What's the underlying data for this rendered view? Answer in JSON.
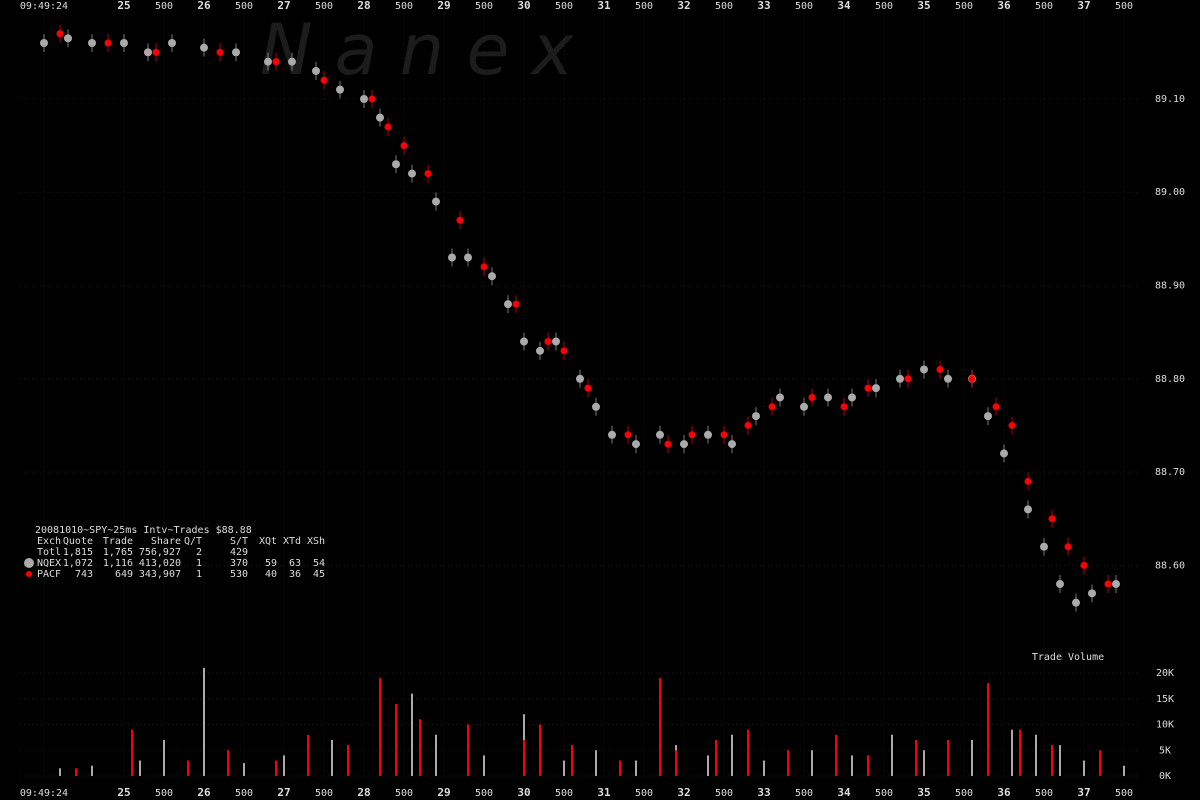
{
  "watermark": "N a n e x",
  "info": {
    "title": "20081010~SPY~25ms Intv~Trades $88.88",
    "columns": [
      "Exch",
      "Quote",
      "Trade",
      "Share",
      "Q/T",
      "S/T",
      "XQt",
      "XTd",
      "XSh"
    ],
    "total_label": "Totl",
    "total": [
      "1,815",
      "1,765",
      "756,927",
      "2",
      "429"
    ],
    "rows": [
      [
        "1,072",
        "1,116",
        "413,020",
        "1",
        "370",
        "59",
        "63",
        "54"
      ],
      [
        "743",
        "649",
        "343,907",
        "1",
        "530",
        "40",
        "36",
        "45"
      ]
    ]
  },
  "chart_data": [
    {
      "type": "scatter",
      "xlim": [
        23.7,
        37.7
      ],
      "xticks": [
        {
          "value": 24,
          "label": "09:49:24"
        },
        25,
        {
          "value": 25.5,
          "label": "500"
        },
        26,
        {
          "value": 26.5,
          "label": "500"
        },
        27,
        {
          "value": 27.5,
          "label": "500"
        },
        28,
        {
          "value": 28.5,
          "label": "500"
        },
        29,
        {
          "value": 29.5,
          "label": "500"
        },
        30,
        {
          "value": 30.5,
          "label": "500"
        },
        31,
        {
          "value": 31.5,
          "label": "500"
        },
        32,
        {
          "value": 32.5,
          "label": "500"
        },
        33,
        {
          "value": 33.5,
          "label": "500"
        },
        34,
        {
          "value": 34.5,
          "label": "500"
        },
        35,
        {
          "value": 35.5,
          "label": "500"
        },
        36,
        {
          "value": 36.5,
          "label": "500"
        },
        37,
        {
          "value": 37.5,
          "label": "500"
        }
      ],
      "ylim": [
        88.52,
        89.19
      ],
      "yticks": [
        {
          "value": 89.1,
          "label": "89.10"
        },
        {
          "value": 89.0,
          "label": "89.00"
        },
        {
          "value": 88.9,
          "label": "88.90"
        },
        {
          "value": 88.8,
          "label": "88.80"
        },
        {
          "value": 88.7,
          "label": "88.70"
        },
        {
          "value": 88.6,
          "label": "88.60"
        }
      ],
      "grid": true,
      "series": [
        {
          "name": "NQEX",
          "color": "#aaaaaa",
          "x": [
            24.0,
            24.3,
            24.6,
            25.0,
            25.3,
            25.6,
            26.0,
            26.4,
            26.8,
            27.1,
            27.4,
            27.7,
            28.0,
            28.2,
            28.4,
            28.6,
            28.9,
            29.1,
            29.3,
            29.6,
            29.8,
            30.0,
            30.2,
            30.4,
            30.7,
            30.9,
            31.1,
            31.4,
            31.7,
            32.0,
            32.3,
            32.6,
            32.9,
            33.2,
            33.5,
            33.8,
            34.1,
            34.4,
            34.7,
            35.0,
            35.3,
            35.6,
            35.8,
            36.0,
            36.3,
            36.5,
            36.7,
            36.9,
            37.1,
            37.4
          ],
          "values": [
            89.16,
            89.165,
            89.16,
            89.16,
            89.15,
            89.16,
            89.155,
            89.15,
            89.14,
            89.14,
            89.13,
            89.11,
            89.1,
            89.08,
            89.03,
            89.02,
            88.99,
            88.93,
            88.93,
            88.91,
            88.88,
            88.84,
            88.83,
            88.84,
            88.8,
            88.77,
            88.74,
            88.73,
            88.74,
            88.73,
            88.74,
            88.73,
            88.76,
            88.78,
            88.77,
            88.78,
            88.78,
            88.79,
            88.8,
            88.81,
            88.8,
            88.8,
            88.76,
            88.72,
            88.66,
            88.62,
            88.58,
            88.56,
            88.57,
            88.58
          ]
        },
        {
          "name": "PACF",
          "color": "#ff0000",
          "x": [
            24.2,
            24.8,
            25.4,
            26.2,
            26.9,
            27.5,
            28.1,
            28.3,
            28.5,
            28.8,
            29.2,
            29.5,
            29.9,
            30.3,
            30.5,
            30.8,
            31.3,
            31.8,
            32.1,
            32.5,
            32.8,
            33.1,
            33.6,
            34.0,
            34.3,
            34.8,
            35.2,
            35.6,
            35.9,
            36.1,
            36.3,
            36.6,
            36.8,
            37.0,
            37.3
          ],
          "values": [
            89.17,
            89.16,
            89.15,
            89.15,
            89.14,
            89.12,
            89.1,
            89.07,
            89.05,
            89.02,
            88.97,
            88.92,
            88.88,
            88.84,
            88.83,
            88.79,
            88.74,
            88.73,
            88.74,
            88.74,
            88.75,
            88.77,
            88.78,
            88.77,
            88.79,
            88.8,
            88.81,
            88.8,
            88.77,
            88.75,
            88.69,
            88.65,
            88.62,
            88.6,
            88.58
          ]
        }
      ]
    },
    {
      "type": "bar",
      "title": "Trade Volume",
      "xlim": [
        23.7,
        37.7
      ],
      "ylim": [
        0,
        20000
      ],
      "yticks": [
        {
          "value": 20000,
          "label": "20K"
        },
        {
          "value": 15000,
          "label": "15K"
        },
        {
          "value": 10000,
          "label": "10K"
        },
        {
          "value": 5000,
          "label": "5K"
        },
        {
          "value": 0,
          "label": "0K"
        }
      ],
      "series": [
        {
          "name": "NQEX",
          "color": "#aaaaaa",
          "x": [
            24.2,
            24.6,
            25.2,
            25.5,
            26.0,
            26.5,
            27.0,
            27.6,
            28.2,
            28.6,
            28.9,
            29.5,
            30.0,
            30.5,
            30.9,
            31.4,
            31.9,
            32.3,
            32.6,
            33.0,
            33.6,
            34.1,
            34.6,
            35.0,
            35.6,
            35.8,
            36.1,
            36.4,
            36.7,
            37.0,
            37.5
          ],
          "values": [
            1500,
            2000,
            3000,
            7000,
            21000,
            2500,
            4000,
            7000,
            3500,
            16000,
            8000,
            4000,
            12000,
            3000,
            5000,
            3000,
            6000,
            4000,
            8000,
            3000,
            5000,
            4000,
            8000,
            5000,
            7000,
            12000,
            9000,
            8000,
            6000,
            3000,
            2000
          ]
        },
        {
          "name": "PACF",
          "color": "#ff0000",
          "x": [
            24.4,
            25.1,
            25.8,
            26.3,
            26.9,
            27.3,
            27.8,
            28.2,
            28.4,
            28.7,
            29.3,
            30.0,
            30.2,
            30.6,
            31.2,
            31.7,
            31.9,
            32.4,
            32.8,
            33.3,
            33.9,
            34.3,
            34.9,
            35.3,
            35.8,
            36.2,
            36.6,
            37.2
          ],
          "values": [
            1500,
            9000,
            3000,
            5000,
            3000,
            8000,
            6000,
            19000,
            14000,
            11000,
            10000,
            7000,
            10000,
            6000,
            3000,
            19000,
            5000,
            7000,
            9000,
            5000,
            8000,
            4000,
            7000,
            7000,
            18000,
            9000,
            6000,
            5000
          ]
        }
      ]
    }
  ]
}
